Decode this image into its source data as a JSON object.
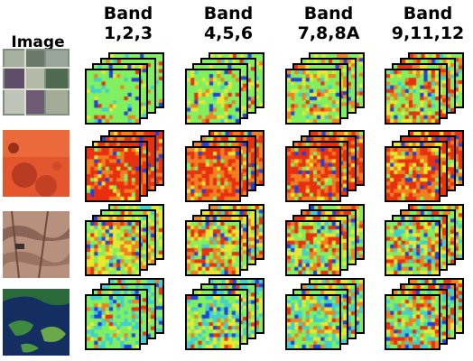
{
  "header": {
    "image_label": "Image",
    "band_title": "Band",
    "bands": [
      "1,2,3",
      "4,5,6",
      "7,8,8A",
      "9,11,12"
    ]
  },
  "rows": [
    {
      "scene": "agricultural-fields",
      "palette": "green",
      "thumb_color": "#8a9a8a"
    },
    {
      "scene": "red-desert-circles",
      "palette": "red",
      "thumb_color": "#e0502a"
    },
    {
      "scene": "eroded-terrain",
      "palette": "mixed",
      "thumb_color": "#b08878"
    },
    {
      "scene": "islands-water",
      "palette": "cool",
      "thumb_color": "#1a3a70"
    }
  ],
  "colors": {
    "red": "#e83010",
    "orange": "#f08020",
    "yellow": "#e8e830",
    "green": "#80f060",
    "cyan": "#40d0d0",
    "blue": "#2040e0"
  }
}
